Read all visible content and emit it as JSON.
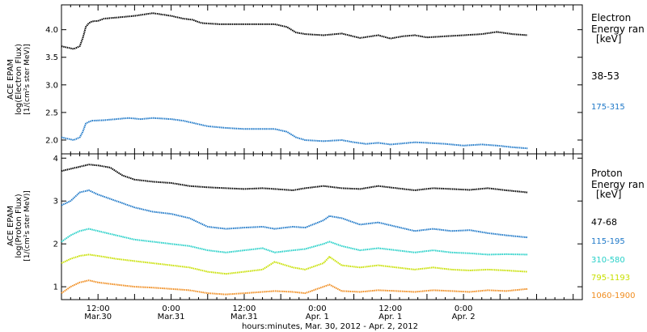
{
  "chart_data": [
    {
      "type": "line",
      "ylabel_lines": [
        "ACE EPAM",
        "log(Electron Flux)",
        "[1/(cm²s ster MeV)]"
      ],
      "ylim": [
        1.75,
        4.45
      ],
      "yticks": [
        2.0,
        2.5,
        3.0,
        3.5,
        4.0
      ],
      "ytick_labels": [
        "2.0",
        "2.5",
        "3.0",
        "3.5",
        "4.0"
      ],
      "legend_title_lines": [
        "Electron",
        "Energy ran",
        "[keV]"
      ],
      "series": [
        {
          "name": "38-53",
          "color": "#000000",
          "x": [
            0,
            4,
            6,
            7,
            8,
            9,
            10,
            12,
            14,
            18,
            24,
            30,
            36,
            40,
            43,
            46,
            52,
            58,
            64,
            70,
            74,
            77,
            80,
            86,
            92,
            98,
            104,
            108,
            112,
            116,
            120,
            126,
            132,
            138,
            143,
            148,
            153
          ],
          "y": [
            3.7,
            3.65,
            3.7,
            3.85,
            4.05,
            4.12,
            4.15,
            4.16,
            4.2,
            4.22,
            4.25,
            4.3,
            4.25,
            4.2,
            4.18,
            4.12,
            4.1,
            4.1,
            4.1,
            4.1,
            4.05,
            3.95,
            3.92,
            3.9,
            3.93,
            3.85,
            3.9,
            3.84,
            3.88,
            3.9,
            3.86,
            3.88,
            3.9,
            3.92,
            3.96,
            3.92,
            3.9
          ]
        },
        {
          "name": "175-315",
          "color": "#1e78c8",
          "x": [
            0,
            4,
            6,
            7,
            8,
            9,
            10,
            14,
            18,
            22,
            26,
            30,
            36,
            40,
            44,
            48,
            54,
            60,
            66,
            70,
            74,
            77,
            80,
            86,
            92,
            96,
            100,
            104,
            108,
            112,
            116,
            120,
            126,
            132,
            138,
            143,
            148,
            153
          ],
          "y": [
            2.05,
            2.0,
            2.05,
            2.15,
            2.3,
            2.33,
            2.35,
            2.36,
            2.38,
            2.4,
            2.38,
            2.4,
            2.38,
            2.35,
            2.3,
            2.25,
            2.22,
            2.2,
            2.2,
            2.2,
            2.15,
            2.05,
            2.0,
            1.98,
            2.0,
            1.96,
            1.93,
            1.95,
            1.92,
            1.94,
            1.96,
            1.95,
            1.93,
            1.9,
            1.92,
            1.9,
            1.87,
            1.85
          ]
        }
      ]
    },
    {
      "type": "line",
      "ylabel_lines": [
        "ACE EPAM",
        "log(Proton Flux)",
        "[1/(cm²s ster MeV)]"
      ],
      "ylim": [
        0.7,
        4.1
      ],
      "yticks": [
        1,
        2,
        3,
        4
      ],
      "ytick_labels": [
        "1",
        "2",
        "3",
        "4"
      ],
      "legend_title_lines": [
        "Proton",
        "Energy ran",
        "[keV]"
      ],
      "series": [
        {
          "name": "47-68",
          "color": "#000000",
          "x": [
            0,
            3,
            6,
            9,
            12,
            16,
            20,
            24,
            30,
            36,
            42,
            48,
            54,
            60,
            66,
            70,
            76,
            80,
            86,
            92,
            98,
            104,
            110,
            116,
            122,
            128,
            134,
            140,
            146,
            153
          ],
          "y": [
            3.7,
            3.75,
            3.8,
            3.85,
            3.83,
            3.78,
            3.6,
            3.5,
            3.45,
            3.42,
            3.35,
            3.32,
            3.3,
            3.28,
            3.3,
            3.28,
            3.25,
            3.3,
            3.35,
            3.3,
            3.28,
            3.35,
            3.3,
            3.25,
            3.3,
            3.28,
            3.26,
            3.3,
            3.25,
            3.2
          ]
        },
        {
          "name": "115-195",
          "color": "#1e78c8",
          "x": [
            0,
            3,
            6,
            9,
            12,
            18,
            24,
            30,
            36,
            42,
            48,
            54,
            60,
            66,
            70,
            76,
            80,
            86,
            88,
            92,
            98,
            104,
            110,
            116,
            122,
            128,
            134,
            140,
            146,
            153
          ],
          "y": [
            2.9,
            3.0,
            3.2,
            3.25,
            3.15,
            3.0,
            2.85,
            2.75,
            2.7,
            2.6,
            2.4,
            2.35,
            2.38,
            2.4,
            2.35,
            2.4,
            2.38,
            2.55,
            2.65,
            2.6,
            2.45,
            2.5,
            2.4,
            2.3,
            2.35,
            2.3,
            2.32,
            2.25,
            2.2,
            2.15
          ]
        },
        {
          "name": "310-580",
          "color": "#26d0c8",
          "x": [
            0,
            3,
            6,
            9,
            12,
            18,
            24,
            30,
            36,
            42,
            48,
            54,
            60,
            66,
            70,
            76,
            80,
            86,
            88,
            92,
            98,
            104,
            110,
            116,
            122,
            128,
            134,
            140,
            146,
            153
          ],
          "y": [
            2.05,
            2.2,
            2.3,
            2.35,
            2.3,
            2.2,
            2.1,
            2.05,
            2.0,
            1.95,
            1.85,
            1.8,
            1.85,
            1.9,
            1.8,
            1.85,
            1.88,
            2.0,
            2.05,
            1.95,
            1.85,
            1.9,
            1.85,
            1.8,
            1.85,
            1.8,
            1.78,
            1.75,
            1.76,
            1.75
          ]
        },
        {
          "name": "795-1193",
          "color": "#c8e000",
          "x": [
            0,
            3,
            6,
            9,
            12,
            18,
            24,
            30,
            36,
            42,
            48,
            54,
            60,
            66,
            70,
            76,
            80,
            86,
            88,
            92,
            98,
            104,
            110,
            116,
            122,
            128,
            134,
            140,
            146,
            153
          ],
          "y": [
            1.55,
            1.65,
            1.72,
            1.75,
            1.72,
            1.65,
            1.6,
            1.55,
            1.5,
            1.45,
            1.35,
            1.3,
            1.35,
            1.4,
            1.58,
            1.45,
            1.4,
            1.55,
            1.7,
            1.5,
            1.45,
            1.5,
            1.45,
            1.4,
            1.45,
            1.4,
            1.38,
            1.4,
            1.38,
            1.35
          ]
        },
        {
          "name": "1060-1900",
          "color": "#f08c1e",
          "x": [
            0,
            3,
            6,
            9,
            12,
            18,
            24,
            30,
            36,
            42,
            48,
            54,
            60,
            66,
            70,
            76,
            80,
            86,
            88,
            92,
            98,
            104,
            110,
            116,
            122,
            128,
            134,
            140,
            146,
            153
          ],
          "y": [
            0.85,
            1.0,
            1.1,
            1.15,
            1.1,
            1.05,
            1.0,
            0.98,
            0.95,
            0.92,
            0.85,
            0.82,
            0.85,
            0.88,
            0.9,
            0.88,
            0.85,
            1.0,
            1.05,
            0.9,
            0.88,
            0.92,
            0.9,
            0.88,
            0.92,
            0.9,
            0.88,
            0.92,
            0.9,
            0.95
          ]
        }
      ]
    }
  ],
  "x_axis": {
    "xlim": [
      0,
      171
    ],
    "major_ticks": [
      12,
      36,
      60,
      84,
      108,
      132,
      156
    ],
    "tick_labels_line1": [
      "12:00",
      "0:00",
      "12:00",
      "0:00",
      "12:00",
      "0:00"
    ],
    "tick_labels_line2": [
      "Mar.30",
      "Mar.31",
      "Mar.31",
      "Apr. 1",
      "Apr. 1",
      "Apr. 2"
    ],
    "label_positions": [
      12,
      36,
      60,
      84,
      108,
      132
    ],
    "xlabel": "hours:minutes, Mar. 30, 2012 - Apr.  2, 2012"
  }
}
